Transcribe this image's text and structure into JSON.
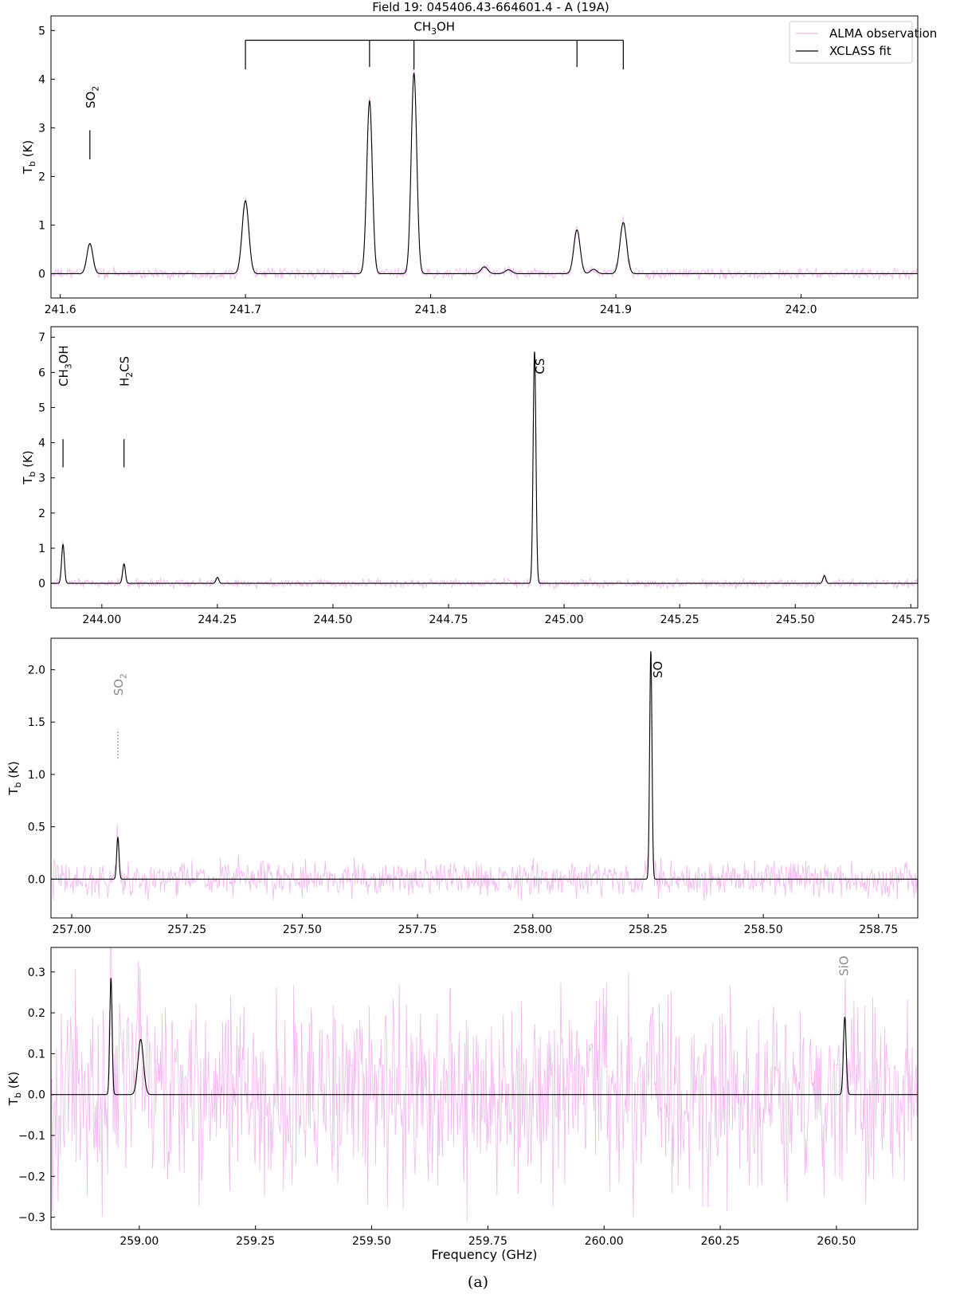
{
  "figure": {
    "title": "Field 19: 045406.43-664601.4 - A (19A)",
    "caption": "(a)"
  },
  "legend": {
    "placement": "top-right",
    "items": [
      {
        "label": "ALMA observation",
        "color": "#f0b8ee"
      },
      {
        "label": "XCLASS fit",
        "color": "#000000"
      }
    ]
  },
  "colors": {
    "observation": "#f0b8ee",
    "fit": "#000000",
    "grey_label": "#8a8a8a"
  },
  "chart_data": [
    {
      "type": "line",
      "ylabel": "T_b (K)",
      "xlabel": "",
      "xlim": [
        241.595,
        242.063
      ],
      "ylim": [
        -0.5,
        5.3
      ],
      "xticks": [
        241.6,
        241.7,
        241.8,
        241.9,
        242.0
      ],
      "xtick_labels": [
        "241.6",
        "241.7",
        "241.8",
        "241.9",
        "242.0"
      ],
      "yticks": [
        0,
        1,
        2,
        3,
        4,
        5
      ],
      "ytick_labels": [
        "0",
        "1",
        "2",
        "3",
        "4",
        "5"
      ],
      "noise_amplitude": 0.12,
      "series": [
        {
          "name": "XCLASS fit",
          "peaks": [
            {
              "x": 241.616,
              "y": 0.62,
              "w": 0.0016
            },
            {
              "x": 241.7,
              "y": 1.5,
              "w": 0.0018
            },
            {
              "x": 241.767,
              "y": 3.55,
              "w": 0.0015
            },
            {
              "x": 241.791,
              "y": 4.12,
              "w": 0.0015
            },
            {
              "x": 241.829,
              "y": 0.14,
              "w": 0.0018
            },
            {
              "x": 241.842,
              "y": 0.08,
              "w": 0.0018
            },
            {
              "x": 241.879,
              "y": 0.9,
              "w": 0.0017
            },
            {
              "x": 241.888,
              "y": 0.09,
              "w": 0.0017
            },
            {
              "x": 241.904,
              "y": 1.05,
              "w": 0.0018
            }
          ]
        }
      ],
      "annotations": [
        {
          "kind": "tick",
          "x": 241.616,
          "y0": 2.35,
          "y1": 2.95,
          "label_pre": "SO",
          "label_sub": "2",
          "label_post": "",
          "label_y": 3.4,
          "grey": false
        },
        {
          "kind": "bracket",
          "label_pre": "CH",
          "label_sub": "3",
          "label_post": "OH",
          "y_bar": 4.8,
          "y_label": 5.0,
          "xs": [
            241.7,
            241.767,
            241.791,
            241.879,
            241.904
          ],
          "ends": [
            4.2,
            4.25,
            4.2,
            4.25,
            4.2
          ]
        }
      ]
    },
    {
      "type": "line",
      "ylabel": "T_b (K)",
      "xlabel": "",
      "xlim": [
        243.89,
        245.765
      ],
      "ylim": [
        -0.7,
        7.3
      ],
      "xticks": [
        244.0,
        244.25,
        244.5,
        244.75,
        245.0,
        245.25,
        245.5,
        245.75
      ],
      "xtick_labels": [
        "244.00",
        "244.25",
        "244.50",
        "244.75",
        "245.00",
        "245.25",
        "245.50",
        "245.75"
      ],
      "yticks": [
        0,
        1,
        2,
        3,
        4,
        5,
        6,
        7
      ],
      "ytick_labels": [
        "0",
        "1",
        "2",
        "3",
        "4",
        "5",
        "6",
        "7"
      ],
      "noise_amplitude": 0.14,
      "series": [
        {
          "name": "XCLASS fit",
          "peaks": [
            {
              "x": 243.916,
              "y": 1.1,
              "w": 0.003
            },
            {
              "x": 244.048,
              "y": 0.55,
              "w": 0.003
            },
            {
              "x": 244.25,
              "y": 0.17,
              "w": 0.003
            },
            {
              "x": 244.936,
              "y": 6.6,
              "w": 0.003
            },
            {
              "x": 245.563,
              "y": 0.22,
              "w": 0.003
            }
          ]
        }
      ],
      "annotations": [
        {
          "kind": "tick",
          "x": 243.916,
          "y0": 3.3,
          "y1": 4.1,
          "label_pre": "CH",
          "label_sub": "3",
          "label_post": "OH",
          "label_y": 5.6,
          "grey": false
        },
        {
          "kind": "tick",
          "x": 244.048,
          "y0": 3.3,
          "y1": 4.1,
          "label_pre": "H",
          "label_sub": "2",
          "label_post": "CS",
          "label_y": 5.6,
          "grey": false
        },
        {
          "kind": "label",
          "x": 244.936,
          "dx_px": 12,
          "label_pre": "CS",
          "label_sub": "",
          "label_post": "",
          "label_y": 5.95,
          "grey": false
        }
      ]
    },
    {
      "type": "line",
      "ylabel": "T_b (K)",
      "xlabel": "",
      "xlim": [
        256.955,
        258.835
      ],
      "ylim": [
        -0.37,
        2.3
      ],
      "xticks": [
        257.0,
        257.25,
        257.5,
        257.75,
        258.0,
        258.25,
        258.5,
        258.75
      ],
      "xtick_labels": [
        "257.00",
        "257.25",
        "257.50",
        "257.75",
        "258.00",
        "258.25",
        "258.50",
        "258.75"
      ],
      "yticks": [
        0.0,
        0.5,
        1.0,
        1.5,
        2.0
      ],
      "ytick_labels": [
        "0.0",
        "0.5",
        "1.0",
        "1.5",
        "2.0"
      ],
      "noise_amplitude": 0.18,
      "series": [
        {
          "name": "XCLASS fit",
          "peaks": [
            {
              "x": 257.1,
              "y": 0.4,
              "w": 0.0025
            },
            {
              "x": 258.256,
              "y": 2.18,
              "w": 0.0025
            }
          ]
        }
      ],
      "annotations": [
        {
          "kind": "tick",
          "x": 257.1,
          "y0": 1.15,
          "y1": 1.43,
          "dashed": true,
          "label_pre": "SO",
          "label_sub": "2",
          "label_post": "",
          "label_y": 1.75,
          "grey": true
        },
        {
          "kind": "label",
          "x": 258.256,
          "dx_px": 14,
          "label_pre": "SO",
          "label_sub": "",
          "label_post": "",
          "label_y": 1.92,
          "grey": false
        }
      ]
    },
    {
      "type": "line",
      "ylabel": "T_b (K)",
      "xlabel": "Frequency (GHz)",
      "xlim": [
        258.81,
        260.675
      ],
      "ylim": [
        -0.33,
        0.36
      ],
      "xticks": [
        259.0,
        259.25,
        259.5,
        259.75,
        260.0,
        260.25,
        260.5
      ],
      "xtick_labels": [
        "259.00",
        "259.25",
        "259.50",
        "259.75",
        "260.00",
        "260.25",
        "260.50"
      ],
      "yticks": [
        -0.3,
        -0.2,
        -0.1,
        0.0,
        0.1,
        0.2,
        0.3
      ],
      "ytick_labels": [
        "−0.3",
        "−0.2",
        "−0.1",
        "0.0",
        "0.1",
        "0.2",
        "0.3"
      ],
      "noise_amplitude": 0.26,
      "series": [
        {
          "name": "XCLASS fit",
          "peaks": [
            {
              "x": 258.939,
              "y": 0.285,
              "w": 0.0025
            },
            {
              "x": 259.003,
              "y": 0.135,
              "w": 0.006
            },
            {
              "x": 260.518,
              "y": 0.19,
              "w": 0.003
            }
          ]
        }
      ],
      "annotations": [
        {
          "kind": "label",
          "x": 260.518,
          "dx_px": 4,
          "label_pre": "SiO",
          "label_sub": "",
          "label_post": "",
          "label_y": 0.29,
          "grey": true
        }
      ]
    }
  ]
}
